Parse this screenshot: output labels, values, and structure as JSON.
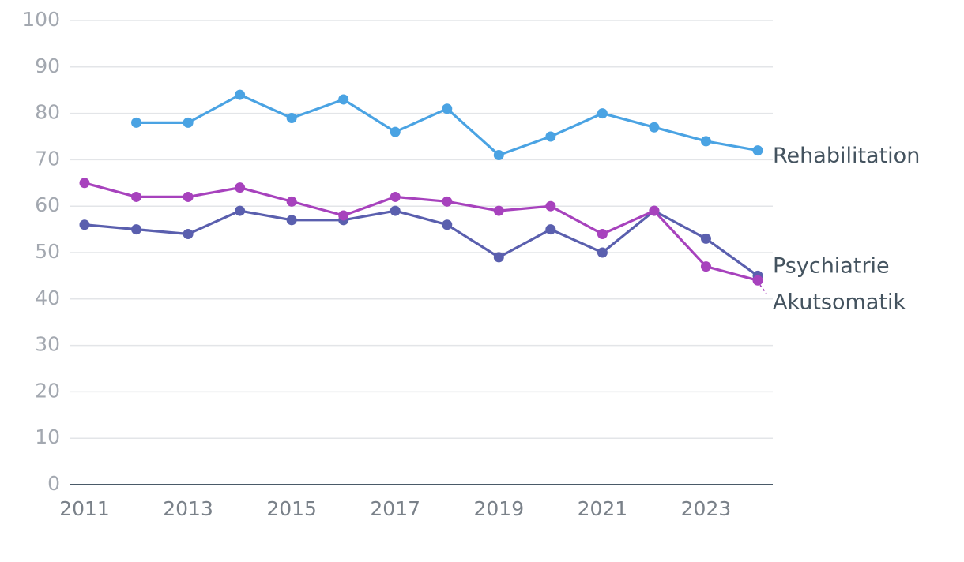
{
  "chart_data": {
    "type": "line",
    "title": "",
    "xlabel": "",
    "ylabel": "",
    "x": [
      2011,
      2012,
      2013,
      2014,
      2015,
      2016,
      2017,
      2018,
      2019,
      2020,
      2021,
      2022,
      2023,
      2024
    ],
    "x_tick_labels": [
      "2011",
      "2013",
      "2015",
      "2017",
      "2019",
      "2021",
      "2023"
    ],
    "y_ticks": [
      0,
      10,
      20,
      30,
      40,
      50,
      60,
      70,
      80,
      90,
      100
    ],
    "ylim": [
      0,
      100
    ],
    "grid": true,
    "legend": "direct labels at line ends (right)",
    "series": [
      {
        "name": "Rehabilitation",
        "color": "#4aa3e3",
        "values": [
          null,
          78,
          78,
          84,
          79,
          83,
          76,
          81,
          71,
          75,
          80,
          77,
          74,
          72
        ]
      },
      {
        "name": "Psychiatrie",
        "color": "#5a5fae",
        "values": [
          56,
          55,
          54,
          59,
          57,
          57,
          59,
          56,
          49,
          55,
          50,
          59,
          53,
          45
        ]
      },
      {
        "name": "Akutsomatik",
        "color": "#a742bd",
        "values": [
          65,
          62,
          62,
          64,
          61,
          58,
          62,
          61,
          59,
          60,
          54,
          59,
          47,
          44
        ]
      }
    ]
  }
}
